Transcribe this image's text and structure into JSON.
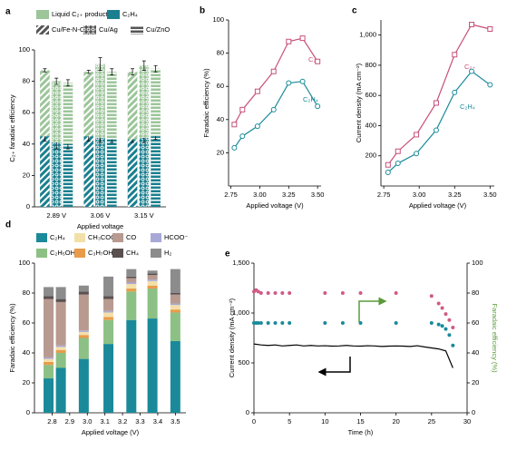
{
  "chart_data": [
    {
      "type": "grouped_stacked_bar",
      "label": "a",
      "ylabel": "C₂₊ faradaic efficiency",
      "xlabel": "Applied voltage",
      "categories": [
        "2.89 V",
        "3.06 V",
        "3.15 V"
      ],
      "groups": [
        "Cu/Fe-N-C",
        "Cu/Ag",
        "Cu/ZnO"
      ],
      "group_color": "#555555",
      "series": [
        {
          "name": "Liquid C₂₊ products",
          "color": "#9cc59a",
          "values": [
            [
              42,
              39,
              39
            ],
            [
              41,
              47,
              43
            ],
            [
              43,
              46,
              43
            ]
          ],
          "errors": [
            [
              1,
              2,
              2
            ],
            [
              1,
              4,
              2
            ],
            [
              2,
              3,
              2
            ]
          ]
        },
        {
          "name": "C₂H₄",
          "color": "#1a7f8e",
          "values": [
            [
              45,
              41,
              40
            ],
            [
              45,
              44,
              43
            ],
            [
              43,
              44,
              45
            ]
          ],
          "errors": [
            [
              3,
              4,
              3
            ],
            [
              3,
              3,
              2
            ],
            [
              2,
              3,
              2
            ]
          ]
        }
      ],
      "ylim": [
        0,
        100
      ],
      "yticks": [
        0,
        20,
        40,
        60,
        80,
        100
      ]
    },
    {
      "type": "line",
      "label": "b",
      "ylabel": "Faradaic efficiency (%)",
      "xlabel": "Applied voltage (V)",
      "x": [
        2.78,
        2.85,
        2.98,
        3.12,
        3.25,
        3.37,
        3.5
      ],
      "series": [
        {
          "name": "C₂₊",
          "color": "#c8507a",
          "marker": "square",
          "values": [
            37,
            46,
            57,
            69,
            87,
            89,
            75
          ]
        },
        {
          "name": "C₂H₄",
          "color": "#1a8a9a",
          "marker": "circle",
          "values": [
            23,
            30,
            36,
            46,
            62,
            63,
            48
          ]
        }
      ],
      "xlim": [
        2.73,
        3.53
      ],
      "xticks": [
        2.75,
        {
          "value": 3.0,
          "label": "3.00"
        },
        3.25,
        {
          "value": 3.5,
          "label": "3.50"
        }
      ],
      "ylim": [
        0,
        100
      ],
      "yticks": [
        20,
        40,
        60,
        80,
        100
      ]
    },
    {
      "type": "line",
      "label": "c",
      "ylabel": "Current density (mA cm⁻²)",
      "xlabel": "Applied voltage (V)",
      "x": [
        2.78,
        2.85,
        2.98,
        3.12,
        3.25,
        3.37,
        3.5
      ],
      "series": [
        {
          "name": "C₂₊",
          "color": "#c8507a",
          "marker": "square",
          "values": [
            140,
            230,
            340,
            550,
            870,
            1070,
            1040
          ]
        },
        {
          "name": "C₂H₄",
          "color": "#1a8a9a",
          "marker": "circle",
          "values": [
            90,
            150,
            215,
            370,
            620,
            760,
            670
          ]
        }
      ],
      "xlim": [
        2.73,
        3.53
      ],
      "xticks": [
        2.75,
        {
          "value": 3.0,
          "label": "3.00"
        },
        3.25,
        {
          "value": 3.5,
          "label": "3.50"
        }
      ],
      "ylim": [
        0,
        1100
      ],
      "yticks": [
        200,
        400,
        600,
        800,
        {
          "value": 1000,
          "label": "1,000"
        }
      ]
    },
    {
      "type": "stacked_bar",
      "label": "d",
      "ylabel": "Faradaic efficiency (%)",
      "xlabel": "Applied voltage (V)",
      "x": [
        2.78,
        2.85,
        2.98,
        3.12,
        3.25,
        3.37,
        3.5
      ],
      "series": [
        {
          "name": "C₂H₄",
          "color": "#1a8a9a",
          "values": [
            23,
            30,
            36,
            46,
            62,
            63,
            48
          ]
        },
        {
          "name": "C₂H₅OH",
          "color": "#8cc084",
          "values": [
            9,
            10,
            14,
            16,
            19,
            20,
            19
          ]
        },
        {
          "name": "C₃H₇OH",
          "color": "#e89c4a",
          "values": [
            2,
            2,
            2,
            2,
            2,
            2,
            2
          ]
        },
        {
          "name": "CH₃COO⁻",
          "color": "#f3e0a8",
          "values": [
            2,
            2,
            2,
            3,
            3,
            3,
            3
          ]
        },
        {
          "name": "HCOO⁻",
          "color": "#a8a8d8",
          "values": [
            1,
            1,
            1,
            1,
            1,
            1,
            1
          ]
        },
        {
          "name": "CO",
          "color": "#b89a90",
          "values": [
            39,
            29,
            24,
            8,
            3,
            3,
            6
          ]
        },
        {
          "name": "CH₄",
          "color": "#5a5050",
          "values": [
            2,
            2,
            2,
            2,
            1,
            1,
            1
          ]
        },
        {
          "name": "H₂",
          "color": "#8c8c8c",
          "values": [
            6,
            8,
            4,
            13,
            5,
            2,
            16
          ]
        }
      ],
      "xlim": [
        2.7,
        3.56
      ],
      "xticks": [
        2.8,
        2.9,
        {
          "value": 3.0,
          "label": "3.0"
        },
        3.1,
        3.2,
        3.3,
        3.4,
        3.5
      ],
      "ylim": [
        0,
        100
      ],
      "yticks": [
        0,
        20,
        40,
        60,
        80,
        100
      ]
    },
    {
      "type": "dual_axis",
      "label": "e",
      "xlabel": "Time (h)",
      "ylabel": "Current density (mA cm⁻²)",
      "y2label": "Faradaic efficiency (%)",
      "y2color": "#5a9a3a",
      "line": {
        "color": "#000000",
        "x": [
          0,
          1,
          2,
          3,
          4,
          5,
          6,
          7,
          8,
          9,
          10,
          11,
          12,
          13,
          14,
          15,
          16,
          17,
          18,
          19,
          20,
          21,
          22,
          23,
          24,
          25,
          26,
          27,
          28
        ],
        "values": [
          690,
          680,
          675,
          680,
          670,
          675,
          680,
          670,
          675,
          670,
          672,
          668,
          670,
          675,
          670,
          668,
          672,
          670,
          665,
          668,
          670,
          668,
          665,
          672,
          660,
          650,
          640,
          620,
          450
        ]
      },
      "points": [
        {
          "color": "#d05a86",
          "x": [
            0,
            0.3,
            0.6,
            1,
            2,
            3,
            4,
            5,
            10,
            12.5,
            15,
            20,
            25,
            26,
            26.5,
            27,
            27.5,
            28
          ],
          "values": [
            81,
            82,
            81,
            80,
            80,
            80,
            80,
            80,
            80,
            80,
            80,
            80,
            78,
            73,
            70,
            66,
            62,
            57
          ]
        },
        {
          "color": "#1a8a9a",
          "x": [
            0,
            0.3,
            0.6,
            1,
            2,
            3,
            4,
            5,
            10,
            12.5,
            15,
            20,
            25,
            26,
            26.5,
            27,
            27.5,
            28
          ],
          "values": [
            60,
            60,
            60,
            60,
            60,
            60,
            60,
            60,
            60,
            60,
            60,
            60,
            60,
            59,
            58,
            56,
            52,
            45
          ]
        }
      ],
      "xlim": [
        0,
        30
      ],
      "xticks": [
        0,
        5,
        10,
        15,
        20,
        25,
        30
      ],
      "ylim": [
        0,
        1500
      ],
      "yticks": [
        0,
        500,
        {
          "value": 1000,
          "label": "1,000"
        },
        {
          "value": 1500,
          "label": "1,500"
        }
      ],
      "y2lim": [
        0,
        100
      ],
      "y2ticks": [
        0,
        20,
        40,
        60,
        80,
        100
      ]
    }
  ]
}
